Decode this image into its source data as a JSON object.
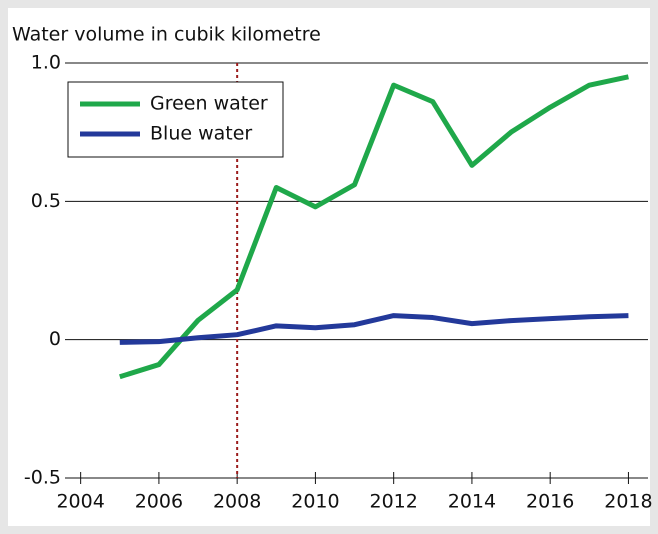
{
  "chart_data": {
    "type": "line",
    "title": "Water volume in cubik kilometre",
    "x": [
      2005,
      2006,
      2007,
      2008,
      2009,
      2010,
      2011,
      2012,
      2013,
      2014,
      2015,
      2016,
      2017,
      2018
    ],
    "series": [
      {
        "name": "Green water",
        "color": "#1fa84a",
        "values": [
          -0.134,
          -0.09,
          0.07,
          0.18,
          0.55,
          0.48,
          0.56,
          0.92,
          0.86,
          0.63,
          0.75,
          0.84,
          0.92,
          0.95
        ]
      },
      {
        "name": "Blue water",
        "color": "#23399a",
        "values": [
          -0.01,
          -0.007,
          0.007,
          0.018,
          0.05,
          0.043,
          0.054,
          0.087,
          0.08,
          0.058,
          0.069,
          0.076,
          0.083,
          0.087
        ]
      }
    ],
    "xlim": [
      2003.6,
      2018.5
    ],
    "xticks": [
      2004,
      2006,
      2008,
      2010,
      2012,
      2014,
      2016,
      2018
    ],
    "ylim": [
      -0.5,
      1.0
    ],
    "yticks": [
      -0.5,
      0,
      0.5,
      {
        "value": 1,
        "label": "1.0"
      }
    ],
    "reference_line_x": 2008,
    "grid": true,
    "legend": "upper left"
  }
}
